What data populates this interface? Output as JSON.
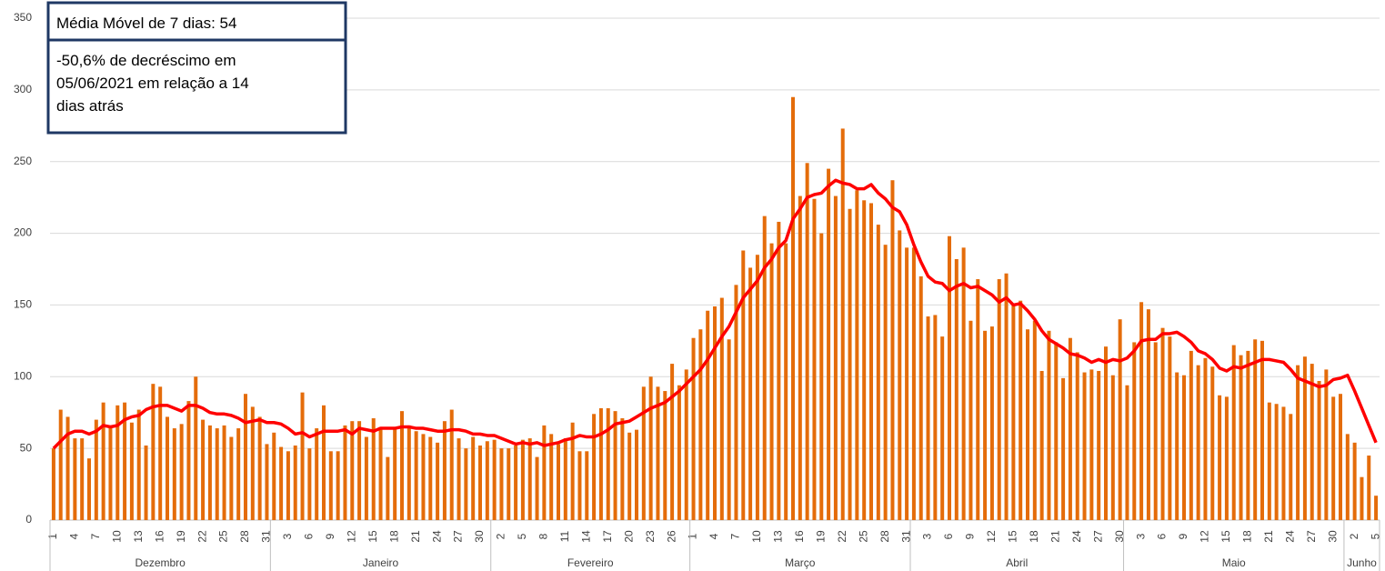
{
  "chart_data": {
    "type": "bar_line",
    "annotations": [
      "Média Móvel de 7 dias: 54",
      "-50,6% de decréscimo em",
      "05/06/2021  em relação a 14",
      "dias atrás"
    ],
    "months": [
      "Dezembro",
      "Janeiro",
      "Fevereiro",
      "Março",
      "Abril",
      "Maio",
      "Junho"
    ],
    "categories": [
      "1",
      null,
      null,
      "4",
      null,
      null,
      "7",
      null,
      null,
      "10",
      null,
      null,
      "13",
      null,
      null,
      "16",
      null,
      null,
      "19",
      null,
      null,
      "22",
      null,
      null,
      "25",
      null,
      null,
      "28",
      null,
      null,
      "31",
      null,
      null,
      "3",
      null,
      null,
      "6",
      null,
      null,
      "9",
      null,
      null,
      "12",
      null,
      null,
      "15",
      null,
      null,
      "18",
      null,
      null,
      "21",
      null,
      null,
      "24",
      null,
      null,
      "27",
      null,
      null,
      "30",
      null,
      null,
      "2",
      null,
      null,
      "5",
      null,
      null,
      "8",
      null,
      null,
      "11",
      null,
      null,
      "14",
      null,
      null,
      "17",
      null,
      null,
      "20",
      null,
      null,
      "23",
      null,
      null,
      "26",
      null,
      null,
      "1",
      null,
      null,
      "4",
      null,
      null,
      "7",
      null,
      null,
      "10",
      null,
      null,
      "13",
      null,
      null,
      "16",
      null,
      null,
      "19",
      null,
      null,
      "22",
      null,
      null,
      "25",
      null,
      null,
      "28",
      null,
      null,
      "31",
      null,
      null,
      "3",
      null,
      null,
      "6",
      null,
      null,
      "9",
      null,
      null,
      "12",
      null,
      null,
      "15",
      null,
      null,
      "18",
      null,
      null,
      "21",
      null,
      null,
      "24",
      null,
      null,
      "27",
      null,
      null,
      "30",
      null,
      null,
      "3",
      null,
      null,
      "6",
      null,
      null,
      "9",
      null,
      null,
      "12",
      null,
      null,
      "15",
      null,
      null,
      "18",
      null,
      null,
      "21",
      null,
      null,
      "24",
      null,
      null,
      "27",
      null,
      null,
      "30",
      null,
      null,
      "2",
      null,
      null,
      "5"
    ],
    "series": [
      {
        "type": "bar",
        "color": "#e46c0a",
        "values": [
          50,
          77,
          72,
          57,
          57,
          43,
          70,
          82,
          65,
          80,
          82,
          68,
          77,
          52,
          95,
          93,
          72,
          64,
          67,
          83,
          100,
          70,
          66,
          64,
          66,
          58,
          64,
          88,
          79,
          72,
          53,
          61,
          51,
          48,
          52,
          89,
          50,
          64,
          80,
          48,
          48,
          66,
          69,
          69,
          58,
          71,
          65,
          44,
          65,
          76,
          66,
          62,
          60,
          58,
          54,
          69,
          77,
          57,
          50,
          58,
          52,
          55,
          56,
          50,
          50,
          52,
          56,
          57,
          44,
          66,
          60,
          53,
          57,
          68,
          48,
          48,
          74,
          78,
          78,
          76,
          71,
          61,
          63,
          93,
          100,
          93,
          90,
          109,
          94,
          105,
          127,
          133,
          146,
          149,
          155,
          126,
          164,
          188,
          176,
          185,
          212,
          193,
          208,
          193,
          295,
          226,
          249,
          224,
          200,
          245,
          226,
          273,
          217,
          230,
          223,
          221,
          206,
          192,
          237,
          202,
          190,
          190,
          170,
          142,
          143,
          128,
          198,
          182,
          190,
          139,
          168,
          132,
          135,
          168,
          172,
          151,
          153,
          133,
          139,
          104,
          132,
          124,
          99,
          127,
          117,
          103,
          105,
          104,
          121,
          101,
          140,
          94,
          124,
          152,
          147,
          124,
          134,
          128,
          103,
          101,
          118,
          108,
          113,
          107,
          87,
          86,
          122,
          115,
          118,
          126,
          125,
          82,
          81,
          79,
          74,
          108,
          114,
          109,
          97,
          105,
          86,
          88,
          60,
          54,
          30,
          45,
          17
        ]
      },
      {
        "type": "line",
        "color": "#ff0000",
        "values": [
          50,
          55,
          60,
          62,
          62,
          60,
          62,
          66,
          65,
          66,
          70,
          72,
          73,
          77,
          79,
          80,
          80,
          78,
          76,
          80,
          80,
          78,
          75,
          74,
          74,
          73,
          71,
          68,
          69,
          70,
          68,
          68,
          67,
          64,
          60,
          61,
          58,
          60,
          62,
          62,
          62,
          63,
          60,
          64,
          63,
          62,
          64,
          64,
          64,
          65,
          65,
          64,
          64,
          63,
          62,
          62,
          63,
          63,
          62,
          60,
          60,
          59,
          59,
          57,
          55,
          53,
          54,
          53,
          54,
          52,
          53,
          54,
          56,
          57,
          59,
          58,
          58,
          60,
          63,
          67,
          68,
          69,
          72,
          75,
          78,
          80,
          82,
          86,
          90,
          95,
          100,
          105,
          112,
          120,
          128,
          135,
          145,
          155,
          161,
          167,
          176,
          182,
          190,
          195,
          210,
          217,
          225,
          227,
          228,
          233,
          237,
          235,
          234,
          231,
          231,
          234,
          228,
          224,
          218,
          215,
          206,
          192,
          180,
          170,
          166,
          165,
          160,
          163,
          165,
          162,
          163,
          160,
          157,
          152,
          155,
          150,
          151,
          146,
          140,
          132,
          126,
          123,
          120,
          116,
          115,
          113,
          110,
          112,
          110,
          112,
          111,
          113,
          118,
          125,
          126,
          126,
          130,
          130,
          131,
          128,
          124,
          118,
          116,
          112,
          106,
          104,
          107,
          106,
          108,
          110,
          112,
          112,
          111,
          110,
          105,
          99,
          97,
          95,
          93,
          94,
          98,
          99,
          101,
          90,
          78,
          66,
          54
        ]
      }
    ],
    "ylim": [
      0,
      350
    ],
    "yticks": [
      0,
      50,
      100,
      150,
      200,
      250,
      300,
      350
    ],
    "grid": true
  }
}
